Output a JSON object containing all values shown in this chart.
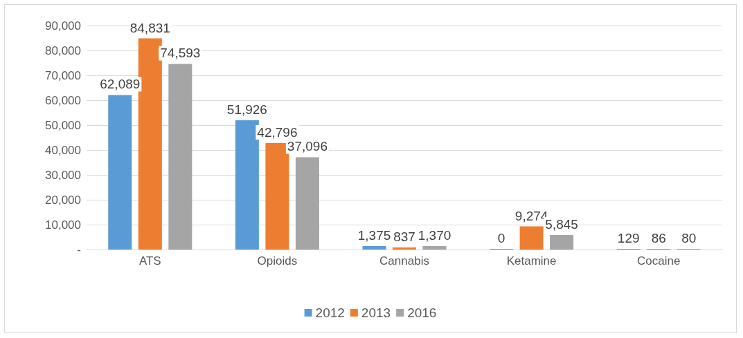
{
  "chart_data": {
    "type": "bar",
    "categories": [
      "ATS",
      "Opioids",
      "Cannabis",
      "Ketamine",
      "Cocaine"
    ],
    "series": [
      {
        "name": "2012",
        "color": "#5b9bd5",
        "values": [
          62089,
          51926,
          1375,
          0,
          129
        ],
        "value_labels": [
          "62,089",
          "51,926",
          "1,375",
          "0",
          "129"
        ]
      },
      {
        "name": "2013",
        "color": "#ed7d31",
        "values": [
          84831,
          42796,
          837,
          9274,
          86
        ],
        "value_labels": [
          "84,831",
          "42,796",
          "837",
          "9,274",
          "86"
        ]
      },
      {
        "name": "2016",
        "color": "#a5a5a5",
        "values": [
          74593,
          37096,
          1370,
          5845,
          80
        ],
        "value_labels": [
          "74,593",
          "37,096",
          "1,370",
          "5,845",
          "80"
        ]
      }
    ],
    "ylim": [
      0,
      90000
    ],
    "yticks": [
      {
        "value": 0,
        "label": "-"
      },
      {
        "value": 10000,
        "label": "10,000"
      },
      {
        "value": 20000,
        "label": "20,000"
      },
      {
        "value": 30000,
        "label": "30,000"
      },
      {
        "value": 40000,
        "label": "40,000"
      },
      {
        "value": 50000,
        "label": "50,000"
      },
      {
        "value": 60000,
        "label": "60,000"
      },
      {
        "value": 70000,
        "label": "70,000"
      },
      {
        "value": 80000,
        "label": "80,000"
      },
      {
        "value": 90000,
        "label": "90,000"
      }
    ],
    "grid": "y",
    "legend": "bottom"
  }
}
